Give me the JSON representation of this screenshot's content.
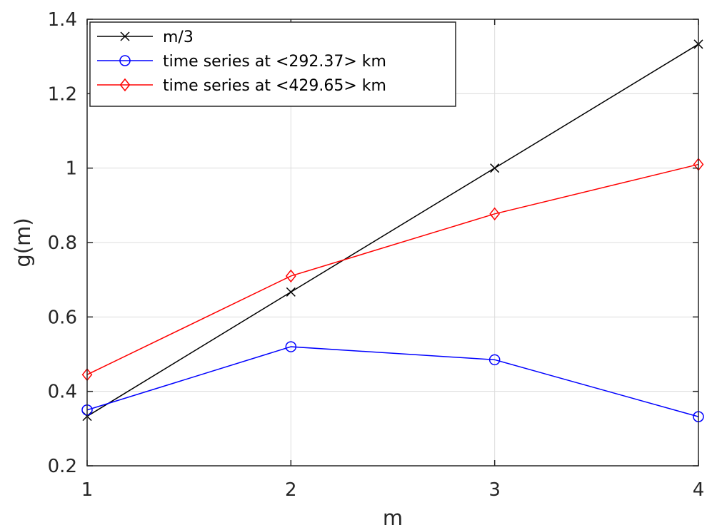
{
  "chart_data": {
    "type": "line",
    "title": "",
    "xlabel": "m",
    "ylabel": "g(m)",
    "xlim": [
      1,
      4
    ],
    "ylim": [
      0.2,
      1.4
    ],
    "xticks": [
      1,
      2,
      3,
      4
    ],
    "xtick_labels": [
      "1",
      "2",
      "3",
      "4"
    ],
    "yticks": [
      0.2,
      0.4,
      0.6,
      0.8,
      1.0,
      1.2,
      1.4
    ],
    "ytick_labels": [
      "0.2",
      "0.4",
      "0.6",
      "0.8",
      "1",
      "1.2",
      "1.4"
    ],
    "grid": true,
    "legend_position": "top-left",
    "x": [
      1,
      2,
      3,
      4
    ],
    "series": [
      {
        "name": "m/3",
        "values": [
          0.333,
          0.667,
          1.0,
          1.333
        ],
        "color": "#000000",
        "marker": "x"
      },
      {
        "name": "time series at <292.37> km",
        "values": [
          0.35,
          0.52,
          0.485,
          0.332
        ],
        "color": "#0000ff",
        "marker": "circle"
      },
      {
        "name": "time series at <429.65> km",
        "values": [
          0.445,
          0.71,
          0.877,
          1.01
        ],
        "color": "#ff0000",
        "marker": "diamond"
      }
    ]
  }
}
